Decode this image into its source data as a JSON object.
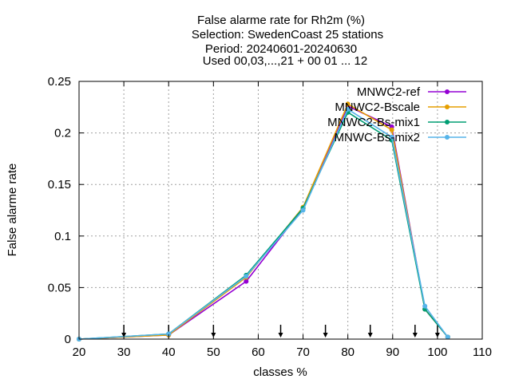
{
  "chart_data": {
    "type": "line",
    "title_lines": [
      "False alarme rate  for Rh2m (%)",
      "Selection: SwedenCoast     25 stations",
      "Period: 20240601-20240630",
      "Used 00,03,...,21 + 00 01 ... 12"
    ],
    "xlabel": "classes %",
    "ylabel": "False alarme rate",
    "xlim": [
      20,
      110
    ],
    "ylim": [
      0,
      0.25
    ],
    "xticks": [
      20,
      30,
      40,
      50,
      60,
      70,
      80,
      90,
      100,
      110
    ],
    "yticks": [
      0,
      0.05,
      0.1,
      0.15,
      0.2,
      0.25
    ],
    "ytick_labels": [
      "0",
      "0.05",
      "0.1",
      "0.15",
      "0.2",
      "0.25"
    ],
    "grid": true,
    "legend_position": "top-right",
    "arrow_marks_x": [
      30,
      40,
      50,
      65,
      75,
      85,
      95,
      100
    ],
    "series": [
      {
        "name": "MNWC2-ref",
        "color": "#9400d3",
        "x": [
          20,
          40,
          57.3,
          70,
          80,
          89.8,
          97.2,
          102.3
        ],
        "y": [
          0,
          0.004,
          0.056,
          0.127,
          0.226,
          0.206,
          0.029,
          0.002
        ]
      },
      {
        "name": "MNWC2-Bscale",
        "color": "#e69f00",
        "x": [
          20,
          40,
          57.3,
          70,
          80,
          89.8,
          97.2,
          102.3
        ],
        "y": [
          0,
          0.004,
          0.06,
          0.128,
          0.228,
          0.203,
          0.029,
          0.002
        ]
      },
      {
        "name": "MNWC2-Bs-mix1",
        "color": "#009e73",
        "x": [
          20,
          40,
          57.3,
          70,
          80,
          89.8,
          97.2,
          102.3
        ],
        "y": [
          0,
          0.005,
          0.062,
          0.127,
          0.22,
          0.193,
          0.029,
          0.002
        ]
      },
      {
        "name": "MNWC-Bs-mix2",
        "color": "#56b4e9",
        "x": [
          20,
          40,
          57.3,
          70,
          80,
          89.8,
          97.2,
          102.3
        ],
        "y": [
          0,
          0.005,
          0.061,
          0.125,
          0.223,
          0.196,
          0.032,
          0.002
        ]
      }
    ]
  }
}
